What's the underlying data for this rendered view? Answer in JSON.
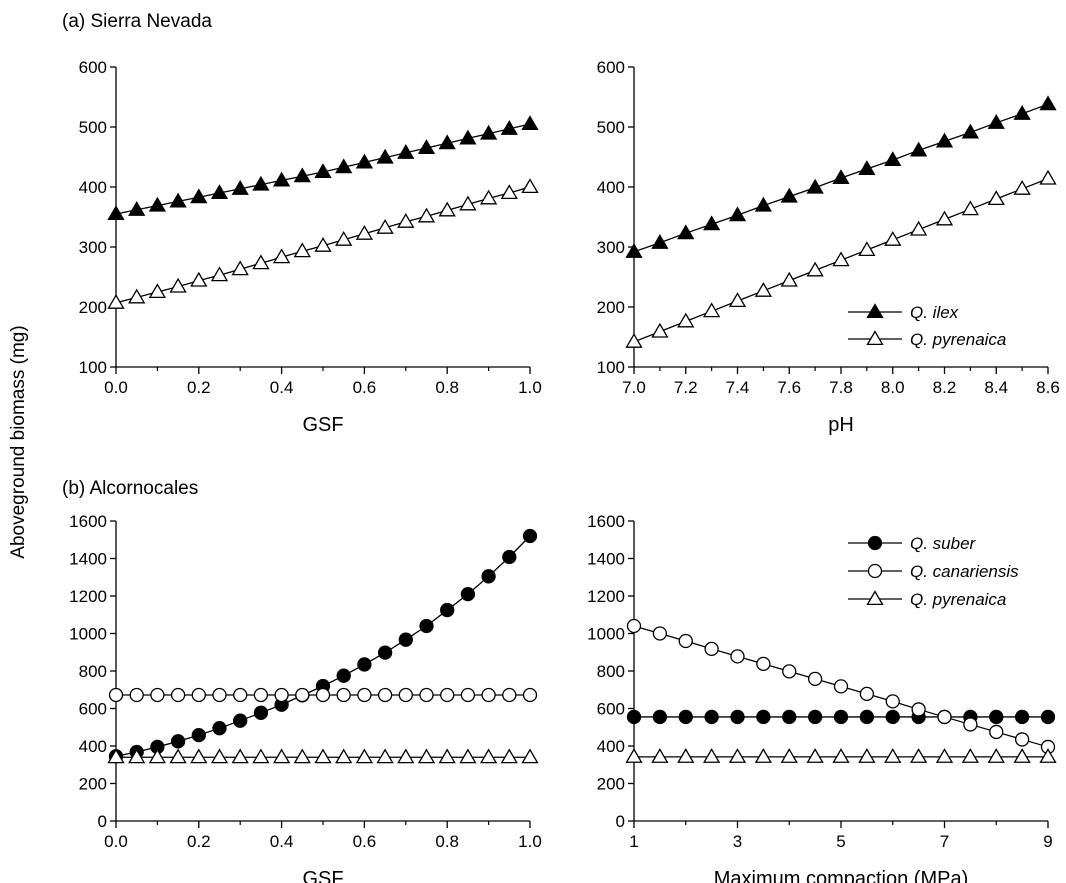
{
  "figure": {
    "shared_ylabel": "Aboveground biomass (mg)",
    "section_a": "(a) Sierra Nevada",
    "section_b": "(b) Alcornocales"
  },
  "chart_data": [
    {
      "type": "line",
      "xlabel": "GSF",
      "xlim": [
        0,
        1
      ],
      "ylim": [
        100,
        600
      ],
      "xticks": [
        "0.0",
        "0.2",
        "0.4",
        "0.6",
        "0.8",
        "1.0"
      ],
      "yticks": [
        "100",
        "200",
        "300",
        "400",
        "500",
        "600"
      ],
      "x": [
        0,
        0.05,
        0.1,
        0.15,
        0.2,
        0.25,
        0.3,
        0.35,
        0.4,
        0.45,
        0.5,
        0.55,
        0.6,
        0.65,
        0.7,
        0.75,
        0.8,
        0.85,
        0.9,
        0.95,
        1.0
      ],
      "series": [
        {
          "name": "Q. ilex",
          "marker": "triangle-filled",
          "values": [
            355,
            362,
            369,
            376,
            383,
            390,
            397,
            404,
            411,
            418,
            425,
            433,
            441,
            449,
            457,
            465,
            473,
            481,
            489,
            497,
            505
          ]
        },
        {
          "name": "Q. pyrenaica",
          "marker": "triangle-open",
          "values": [
            207,
            216,
            225,
            234,
            244,
            253,
            263,
            273,
            283,
            293,
            302,
            312,
            322,
            332,
            342,
            351,
            361,
            371,
            381,
            390,
            400
          ]
        }
      ]
    },
    {
      "type": "line",
      "xlabel": "pH",
      "xlim": [
        7.0,
        8.6
      ],
      "ylim": [
        100,
        600
      ],
      "xticks": [
        "7.0",
        "7.2",
        "7.4",
        "7.6",
        "7.8",
        "8.0",
        "8.2",
        "8.4",
        "8.6"
      ],
      "yticks": [
        "100",
        "200",
        "300",
        "400",
        "500",
        "600"
      ],
      "x": [
        7.0,
        7.1,
        7.2,
        7.3,
        7.4,
        7.5,
        7.6,
        7.7,
        7.8,
        7.9,
        8.0,
        8.1,
        8.2,
        8.3,
        8.4,
        8.5,
        8.6
      ],
      "legend": "bottom-right",
      "series": [
        {
          "name": "Q. ilex",
          "marker": "triangle-filled",
          "values": [
            292,
            307,
            323,
            338,
            353,
            369,
            384,
            399,
            415,
            430,
            445,
            461,
            476,
            491,
            507,
            522,
            538
          ]
        },
        {
          "name": "Q. pyrenaica",
          "marker": "triangle-open",
          "values": [
            142,
            159,
            176,
            193,
            210,
            227,
            244,
            261,
            278,
            295,
            312,
            329,
            346,
            363,
            380,
            397,
            414
          ]
        }
      ]
    },
    {
      "type": "line",
      "xlabel": "GSF",
      "xlim": [
        0,
        1
      ],
      "ylim": [
        0,
        1600
      ],
      "xticks": [
        "0.0",
        "0.2",
        "0.4",
        "0.6",
        "0.8",
        "1.0"
      ],
      "yticks": [
        "0",
        "200",
        "400",
        "600",
        "800",
        "1000",
        "1200",
        "1400",
        "1600"
      ],
      "x": [
        0,
        0.05,
        0.1,
        0.15,
        0.2,
        0.25,
        0.3,
        0.35,
        0.4,
        0.45,
        0.5,
        0.55,
        0.6,
        0.65,
        0.7,
        0.75,
        0.8,
        0.85,
        0.9,
        0.95,
        1.0
      ],
      "series": [
        {
          "name": "Q. suber",
          "marker": "circle-filled",
          "values": [
            345,
            368,
            395,
            425,
            458,
            495,
            535,
            577,
            620,
            670,
            720,
            775,
            835,
            898,
            967,
            1040,
            1125,
            1210,
            1305,
            1408,
            1520
          ]
        },
        {
          "name": "Q. canariensis",
          "marker": "circle-open",
          "values": [
            672,
            672,
            672,
            672,
            672,
            672,
            672,
            672,
            672,
            672,
            672,
            672,
            672,
            672,
            672,
            672,
            672,
            672,
            672,
            672,
            672
          ]
        },
        {
          "name": "Q. pyrenaica",
          "marker": "triangle-open",
          "values": [
            340,
            340,
            340,
            340,
            340,
            340,
            340,
            340,
            340,
            340,
            340,
            340,
            340,
            340,
            340,
            340,
            340,
            340,
            340,
            340,
            340
          ]
        }
      ]
    },
    {
      "type": "line",
      "xlabel": "Maximum compaction (MPa)",
      "xlim": [
        1,
        9
      ],
      "ylim": [
        0,
        1600
      ],
      "xticks": [
        "1",
        "3",
        "5",
        "7",
        "9"
      ],
      "yticks": [
        "0",
        "200",
        "400",
        "600",
        "800",
        "1000",
        "1200",
        "1400",
        "1600"
      ],
      "x": [
        1,
        1.5,
        2,
        2.5,
        3,
        3.5,
        4,
        4.5,
        5,
        5.5,
        6,
        6.5,
        7,
        7.5,
        8,
        8.5,
        9
      ],
      "legend": "top-right",
      "series": [
        {
          "name": "Q. suber",
          "marker": "circle-filled",
          "values": [
            555,
            555,
            555,
            555,
            555,
            555,
            555,
            555,
            555,
            555,
            555,
            555,
            555,
            555,
            555,
            555,
            555
          ]
        },
        {
          "name": "Q. canariensis",
          "marker": "circle-open",
          "values": [
            1040,
            1000,
            960,
            918,
            878,
            838,
            798,
            758,
            718,
            678,
            638,
            595,
            555,
            515,
            475,
            435,
            395
          ]
        },
        {
          "name": "Q. pyrenaica",
          "marker": "triangle-open",
          "values": [
            342,
            342,
            342,
            342,
            342,
            342,
            342,
            342,
            342,
            342,
            342,
            342,
            342,
            342,
            342,
            342,
            342
          ]
        }
      ]
    }
  ]
}
